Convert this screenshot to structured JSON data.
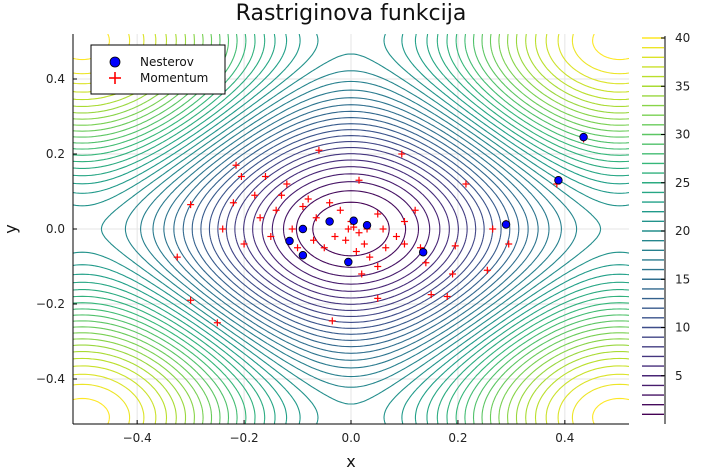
{
  "chart_data": {
    "type": "contour",
    "title": "Rastriginova funkcija",
    "xlabel": "x",
    "ylabel": "y",
    "xlim": [
      -0.52,
      0.52
    ],
    "ylim": [
      -0.52,
      0.52
    ],
    "xticks": [
      -0.4,
      -0.2,
      0.0,
      0.2,
      0.4
    ],
    "xtick_labels": [
      "−0.4",
      "−0.2",
      "0.0",
      "0.2",
      "0.4"
    ],
    "yticks": [
      -0.4,
      -0.2,
      0.0,
      0.2,
      0.4
    ],
    "ytick_labels": [
      "−0.4",
      "−0.2",
      "0.0",
      "0.2",
      "0.4"
    ],
    "grid": true,
    "legend_position": "top-left",
    "colorbar": {
      "range": [
        0,
        40
      ],
      "ticks": [
        5,
        10,
        15,
        20,
        25,
        30,
        35,
        40
      ],
      "colormap": "viridis"
    },
    "contour": {
      "function": "rastrigin",
      "levels_count": 40,
      "level_range": [
        1,
        40
      ]
    },
    "series": [
      {
        "name": "Nesterov",
        "marker": "circle",
        "color": "#0000ff",
        "points": [
          [
            0.435,
            0.245
          ],
          [
            0.388,
            0.13
          ],
          [
            0.29,
            0.012
          ],
          [
            0.135,
            -0.062
          ],
          [
            0.03,
            0.01
          ],
          [
            0.005,
            0.022
          ],
          [
            -0.04,
            0.02
          ],
          [
            -0.09,
            0.0
          ],
          [
            -0.115,
            -0.032
          ],
          [
            -0.09,
            -0.07
          ],
          [
            -0.005,
            -0.088
          ]
        ]
      },
      {
        "name": "Momentum",
        "marker": "plus",
        "color": "#ff0000",
        "points": [
          [
            0.435,
            0.24
          ],
          [
            0.385,
            0.12
          ],
          [
            0.29,
            0.015
          ],
          [
            0.295,
            -0.04
          ],
          [
            0.265,
            0.0
          ],
          [
            0.255,
            -0.11
          ],
          [
            0.215,
            0.12
          ],
          [
            0.19,
            -0.12
          ],
          [
            0.195,
            -0.045
          ],
          [
            0.18,
            -0.18
          ],
          [
            0.15,
            -0.175
          ],
          [
            0.14,
            -0.09
          ],
          [
            0.13,
            -0.05
          ],
          [
            0.095,
            0.2
          ],
          [
            0.12,
            0.05
          ],
          [
            0.1,
            0.02
          ],
          [
            0.1,
            -0.04
          ],
          [
            0.085,
            -0.02
          ],
          [
            0.065,
            -0.05
          ],
          [
            0.05,
            0.04
          ],
          [
            0.05,
            -0.1
          ],
          [
            0.05,
            -0.185
          ],
          [
            0.035,
            -0.075
          ],
          [
            0.025,
            -0.04
          ],
          [
            0.02,
            -0.12
          ],
          [
            0.015,
            0.13
          ],
          [
            0.01,
            -0.06
          ],
          [
            0.0,
            0.02
          ],
          [
            -0.01,
            -0.03
          ],
          [
            -0.02,
            0.05
          ],
          [
            -0.03,
            -0.02
          ],
          [
            -0.035,
            -0.245
          ],
          [
            -0.04,
            0.07
          ],
          [
            -0.05,
            -0.05
          ],
          [
            -0.06,
            0.21
          ],
          [
            -0.065,
            0.03
          ],
          [
            -0.07,
            -0.03
          ],
          [
            -0.08,
            0.08
          ],
          [
            -0.09,
            0.06
          ],
          [
            -0.1,
            -0.05
          ],
          [
            -0.11,
            0.0
          ],
          [
            -0.12,
            0.12
          ],
          [
            -0.13,
            0.09
          ],
          [
            -0.14,
            0.05
          ],
          [
            -0.15,
            -0.02
          ],
          [
            -0.16,
            0.14
          ],
          [
            -0.17,
            0.03
          ],
          [
            -0.18,
            0.09
          ],
          [
            -0.2,
            -0.04
          ],
          [
            -0.205,
            0.14
          ],
          [
            -0.215,
            0.17
          ],
          [
            -0.22,
            0.07
          ],
          [
            -0.24,
            0.0
          ],
          [
            -0.25,
            -0.25
          ],
          [
            -0.3,
            0.065
          ],
          [
            -0.3,
            -0.19
          ],
          [
            -0.325,
            -0.075
          ],
          [
            0.06,
            0.0
          ],
          [
            0.03,
            0.0
          ],
          [
            0.015,
            -0.01
          ],
          [
            0.005,
            0.005
          ],
          [
            -0.005,
            0.0
          ]
        ]
      }
    ]
  }
}
